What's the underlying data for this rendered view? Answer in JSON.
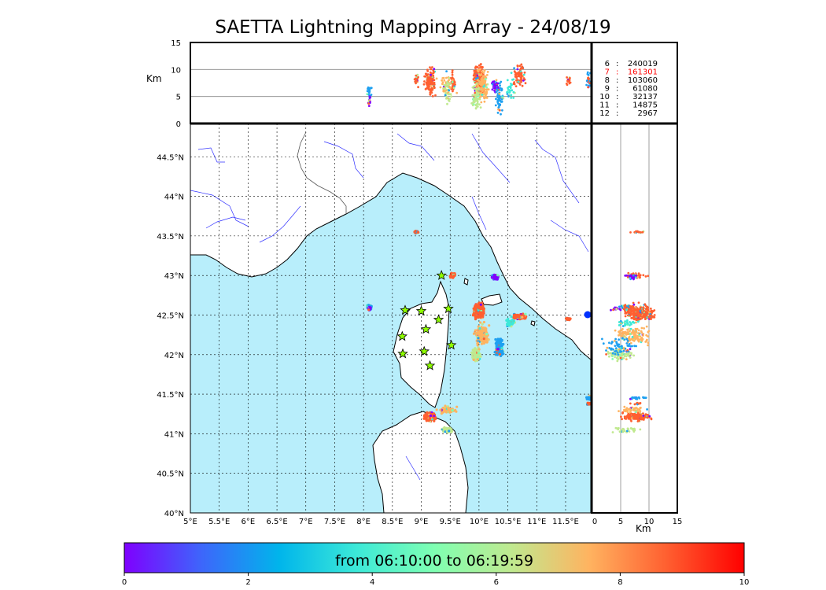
{
  "title": "SAETTA Lightning Mapping Array - 24/08/19",
  "colors": {
    "sea": "#b8eefb",
    "land": "#ffffff",
    "coast": "#000000",
    "river": "#3030ff",
    "border": "#555555",
    "grid": "#000000",
    "highlight": "#ff0000"
  },
  "top_panel": {
    "ylabel": "Km",
    "yticks": [
      "15",
      "10",
      "5",
      "0"
    ]
  },
  "side_panel": {
    "xlabel": "Km",
    "xticks": [
      "0",
      "5",
      "10",
      "15"
    ]
  },
  "counts": [
    {
      "label": "6",
      "value": "240019",
      "highlight": false
    },
    {
      "label": "7",
      "value": "161301",
      "highlight": true
    },
    {
      "label": "8",
      "value": "103060",
      "highlight": false
    },
    {
      "label": "9",
      "value": "61080",
      "highlight": false
    },
    {
      "label": "10",
      "value": "32137",
      "highlight": false
    },
    {
      "label": "11",
      "value": "14875",
      "highlight": false
    },
    {
      "label": "12",
      "value": "2967",
      "highlight": false
    }
  ],
  "map": {
    "lat_ticks": [
      "44.5°N",
      "44°N",
      "43.5°N",
      "43°N",
      "42.5°N",
      "42°N",
      "41.5°N",
      "41°N",
      "40.5°N",
      "40°N"
    ],
    "lon_ticks": [
      "5°E",
      "5.5°E",
      "6°E",
      "6.5°E",
      "7°E",
      "7.5°E",
      "8°E",
      "8.5°E",
      "9°E",
      "9.5°E",
      "10°E",
      "10.5°E",
      "11°E",
      "11.5°E"
    ]
  },
  "stations": [
    {
      "lon": 9.35,
      "lat": 43.0
    },
    {
      "lon": 8.72,
      "lat": 42.56
    },
    {
      "lon": 9.0,
      "lat": 42.55
    },
    {
      "lon": 9.47,
      "lat": 42.58
    },
    {
      "lon": 9.3,
      "lat": 42.44
    },
    {
      "lon": 8.67,
      "lat": 42.23
    },
    {
      "lon": 9.08,
      "lat": 42.32
    },
    {
      "lon": 9.52,
      "lat": 42.12
    },
    {
      "lon": 8.68,
      "lat": 42.01
    },
    {
      "lon": 9.05,
      "lat": 42.04
    },
    {
      "lon": 9.15,
      "lat": 41.86
    }
  ],
  "colorbar": {
    "label": "from 06:10:00 to 06:19:59",
    "ticks": [
      "0",
      "2",
      "4",
      "6",
      "8",
      "10"
    ],
    "stops": [
      "#7f00ff",
      "#3d66fb",
      "#00b5eb",
      "#3ce9d8",
      "#7fffb2",
      "#c0e98f",
      "#ffb360",
      "#ff5f30",
      "#ff0000"
    ]
  }
}
